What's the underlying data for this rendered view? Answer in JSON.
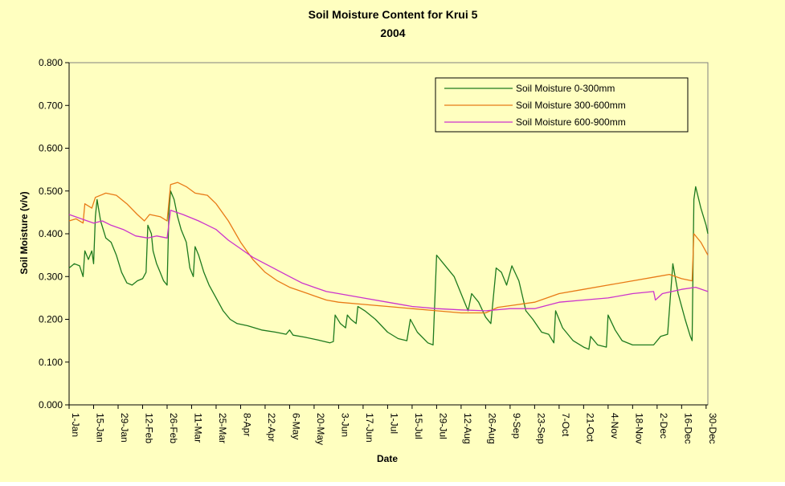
{
  "chart_data": {
    "type": "line",
    "title": "Soil Moisture Content for Krui 5",
    "subtitle": "2004",
    "xlabel": "Date",
    "ylabel": "Soil Moisture (v/v)",
    "ylim": [
      0,
      0.8
    ],
    "yticks": [
      "0.000",
      "0.100",
      "0.200",
      "0.300",
      "0.400",
      "0.500",
      "0.600",
      "0.700",
      "0.800"
    ],
    "xlim": [
      "2004-01-01",
      "2004-12-31"
    ],
    "xticks": [
      {
        "date": "2004-01-01",
        "label": "1-Jan"
      },
      {
        "date": "2004-01-15",
        "label": "15-Jan"
      },
      {
        "date": "2004-01-29",
        "label": "29-Jan"
      },
      {
        "date": "2004-02-12",
        "label": "12-Feb"
      },
      {
        "date": "2004-02-26",
        "label": "26-Feb"
      },
      {
        "date": "2004-03-11",
        "label": "11-Mar"
      },
      {
        "date": "2004-03-25",
        "label": "25-Mar"
      },
      {
        "date": "2004-04-08",
        "label": "8-Apr"
      },
      {
        "date": "2004-04-22",
        "label": "22-Apr"
      },
      {
        "date": "2004-05-06",
        "label": "6-May"
      },
      {
        "date": "2004-05-20",
        "label": "20-May"
      },
      {
        "date": "2004-06-03",
        "label": "3-Jun"
      },
      {
        "date": "2004-06-17",
        "label": "17-Jun"
      },
      {
        "date": "2004-07-01",
        "label": "1-Jul"
      },
      {
        "date": "2004-07-15",
        "label": "15-Jul"
      },
      {
        "date": "2004-07-29",
        "label": "29-Jul"
      },
      {
        "date": "2004-08-12",
        "label": "12-Aug"
      },
      {
        "date": "2004-08-26",
        "label": "26-Aug"
      },
      {
        "date": "2004-09-09",
        "label": "9-Sep"
      },
      {
        "date": "2004-09-23",
        "label": "23-Sep"
      },
      {
        "date": "2004-10-07",
        "label": "7-Oct"
      },
      {
        "date": "2004-10-21",
        "label": "21-Oct"
      },
      {
        "date": "2004-11-04",
        "label": "4-Nov"
      },
      {
        "date": "2004-11-18",
        "label": "18-Nov"
      },
      {
        "date": "2004-12-02",
        "label": "2-Dec"
      },
      {
        "date": "2004-12-16",
        "label": "16-Dec"
      },
      {
        "date": "2004-12-30",
        "label": "30-Dec"
      }
    ],
    "grid": false,
    "legend": "top-right",
    "series": [
      {
        "name": "Soil Moisture 0-300mm",
        "color": "#1e7a1e",
        "points": [
          [
            "2004-01-01",
            0.32
          ],
          [
            "2004-01-04",
            0.33
          ],
          [
            "2004-01-07",
            0.325
          ],
          [
            "2004-01-09",
            0.3
          ],
          [
            "2004-01-10",
            0.36
          ],
          [
            "2004-01-12",
            0.34
          ],
          [
            "2004-01-14",
            0.36
          ],
          [
            "2004-01-15",
            0.33
          ],
          [
            "2004-01-16",
            0.44
          ],
          [
            "2004-01-17",
            0.48
          ],
          [
            "2004-01-19",
            0.43
          ],
          [
            "2004-01-22",
            0.39
          ],
          [
            "2004-01-25",
            0.38
          ],
          [
            "2004-01-28",
            0.35
          ],
          [
            "2004-01-31",
            0.31
          ],
          [
            "2004-02-03",
            0.285
          ],
          [
            "2004-02-06",
            0.28
          ],
          [
            "2004-02-09",
            0.29
          ],
          [
            "2004-02-12",
            0.295
          ],
          [
            "2004-02-14",
            0.31
          ],
          [
            "2004-02-15",
            0.42
          ],
          [
            "2004-02-17",
            0.4
          ],
          [
            "2004-02-18",
            0.36
          ],
          [
            "2004-02-20",
            0.33
          ],
          [
            "2004-02-22",
            0.31
          ],
          [
            "2004-02-24",
            0.29
          ],
          [
            "2004-02-26",
            0.28
          ],
          [
            "2004-02-27",
            0.45
          ],
          [
            "2004-02-28",
            0.5
          ],
          [
            "2004-03-01",
            0.48
          ],
          [
            "2004-03-03",
            0.44
          ],
          [
            "2004-03-05",
            0.41
          ],
          [
            "2004-03-08",
            0.38
          ],
          [
            "2004-03-10",
            0.32
          ],
          [
            "2004-03-12",
            0.3
          ],
          [
            "2004-03-13",
            0.37
          ],
          [
            "2004-03-15",
            0.35
          ],
          [
            "2004-03-18",
            0.31
          ],
          [
            "2004-03-21",
            0.28
          ],
          [
            "2004-03-25",
            0.25
          ],
          [
            "2004-03-29",
            0.22
          ],
          [
            "2004-04-02",
            0.2
          ],
          [
            "2004-04-06",
            0.19
          ],
          [
            "2004-04-12",
            0.185
          ],
          [
            "2004-04-20",
            0.175
          ],
          [
            "2004-04-28",
            0.17
          ],
          [
            "2004-05-04",
            0.165
          ],
          [
            "2004-05-06",
            0.175
          ],
          [
            "2004-05-08",
            0.163
          ],
          [
            "2004-05-15",
            0.158
          ],
          [
            "2004-05-22",
            0.152
          ],
          [
            "2004-05-29",
            0.145
          ],
          [
            "2004-05-31",
            0.148
          ],
          [
            "2004-06-01",
            0.21
          ],
          [
            "2004-06-04",
            0.19
          ],
          [
            "2004-06-07",
            0.18
          ],
          [
            "2004-06-08",
            0.21
          ],
          [
            "2004-06-10",
            0.2
          ],
          [
            "2004-06-13",
            0.19
          ],
          [
            "2004-06-14",
            0.23
          ],
          [
            "2004-06-18",
            0.22
          ],
          [
            "2004-06-24",
            0.2
          ],
          [
            "2004-07-01",
            0.17
          ],
          [
            "2004-07-07",
            0.155
          ],
          [
            "2004-07-12",
            0.15
          ],
          [
            "2004-07-14",
            0.2
          ],
          [
            "2004-07-18",
            0.17
          ],
          [
            "2004-07-24",
            0.145
          ],
          [
            "2004-07-27",
            0.14
          ],
          [
            "2004-07-29",
            0.35
          ],
          [
            "2004-08-02",
            0.33
          ],
          [
            "2004-08-08",
            0.3
          ],
          [
            "2004-08-14",
            0.24
          ],
          [
            "2004-08-16",
            0.22
          ],
          [
            "2004-08-18",
            0.26
          ],
          [
            "2004-08-22",
            0.24
          ],
          [
            "2004-08-26",
            0.205
          ],
          [
            "2004-08-29",
            0.19
          ],
          [
            "2004-09-01",
            0.32
          ],
          [
            "2004-09-04",
            0.31
          ],
          [
            "2004-09-07",
            0.28
          ],
          [
            "2004-09-10",
            0.325
          ],
          [
            "2004-09-14",
            0.29
          ],
          [
            "2004-09-18",
            0.22
          ],
          [
            "2004-09-22",
            0.2
          ],
          [
            "2004-09-27",
            0.17
          ],
          [
            "2004-10-01",
            0.165
          ],
          [
            "2004-10-04",
            0.145
          ],
          [
            "2004-10-05",
            0.22
          ],
          [
            "2004-10-09",
            0.18
          ],
          [
            "2004-10-15",
            0.15
          ],
          [
            "2004-10-21",
            0.135
          ],
          [
            "2004-10-24",
            0.13
          ],
          [
            "2004-10-25",
            0.16
          ],
          [
            "2004-10-29",
            0.14
          ],
          [
            "2004-11-03",
            0.135
          ],
          [
            "2004-11-04",
            0.21
          ],
          [
            "2004-11-08",
            0.175
          ],
          [
            "2004-11-12",
            0.15
          ],
          [
            "2004-11-18",
            0.14
          ],
          [
            "2004-11-24",
            0.14
          ],
          [
            "2004-11-30",
            0.14
          ],
          [
            "2004-12-04",
            0.16
          ],
          [
            "2004-12-08",
            0.165
          ],
          [
            "2004-12-11",
            0.33
          ],
          [
            "2004-12-14",
            0.26
          ],
          [
            "2004-12-18",
            0.2
          ],
          [
            "2004-12-21",
            0.16
          ],
          [
            "2004-12-22",
            0.15
          ],
          [
            "2004-12-23",
            0.48
          ],
          [
            "2004-12-24",
            0.51
          ],
          [
            "2004-12-27",
            0.46
          ],
          [
            "2004-12-30",
            0.42
          ],
          [
            "2004-12-31",
            0.4
          ]
        ]
      },
      {
        "name": "Soil Moisture 300-600mm",
        "color": "#e87a16",
        "points": [
          [
            "2004-01-01",
            0.43
          ],
          [
            "2004-01-05",
            0.435
          ],
          [
            "2004-01-09",
            0.425
          ],
          [
            "2004-01-10",
            0.47
          ],
          [
            "2004-01-14",
            0.46
          ],
          [
            "2004-01-16",
            0.485
          ],
          [
            "2004-01-22",
            0.495
          ],
          [
            "2004-01-28",
            0.49
          ],
          [
            "2004-02-03",
            0.47
          ],
          [
            "2004-02-09",
            0.445
          ],
          [
            "2004-02-13",
            0.43
          ],
          [
            "2004-02-16",
            0.445
          ],
          [
            "2004-02-22",
            0.44
          ],
          [
            "2004-02-26",
            0.43
          ],
          [
            "2004-02-28",
            0.515
          ],
          [
            "2004-03-03",
            0.52
          ],
          [
            "2004-03-08",
            0.51
          ],
          [
            "2004-03-13",
            0.495
          ],
          [
            "2004-03-20",
            0.49
          ],
          [
            "2004-03-25",
            0.47
          ],
          [
            "2004-04-01",
            0.43
          ],
          [
            "2004-04-08",
            0.38
          ],
          [
            "2004-04-15",
            0.34
          ],
          [
            "2004-04-22",
            0.31
          ],
          [
            "2004-04-29",
            0.29
          ],
          [
            "2004-05-06",
            0.275
          ],
          [
            "2004-05-13",
            0.265
          ],
          [
            "2004-05-20",
            0.255
          ],
          [
            "2004-05-27",
            0.245
          ],
          [
            "2004-06-03",
            0.24
          ],
          [
            "2004-06-17",
            0.235
          ],
          [
            "2004-07-01",
            0.23
          ],
          [
            "2004-07-15",
            0.225
          ],
          [
            "2004-07-29",
            0.22
          ],
          [
            "2004-08-12",
            0.215
          ],
          [
            "2004-08-26",
            0.215
          ],
          [
            "2004-09-02",
            0.228
          ],
          [
            "2004-09-09",
            0.232
          ],
          [
            "2004-09-23",
            0.24
          ],
          [
            "2004-10-07",
            0.26
          ],
          [
            "2004-10-21",
            0.27
          ],
          [
            "2004-11-04",
            0.28
          ],
          [
            "2004-11-18",
            0.29
          ],
          [
            "2004-12-02",
            0.3
          ],
          [
            "2004-12-09",
            0.305
          ],
          [
            "2004-12-16",
            0.295
          ],
          [
            "2004-12-22",
            0.29
          ],
          [
            "2004-12-23",
            0.4
          ],
          [
            "2004-12-27",
            0.38
          ],
          [
            "2004-12-31",
            0.35
          ]
        ]
      },
      {
        "name": "Soil Moisture 600-900mm",
        "color": "#cc33cc",
        "points": [
          [
            "2004-01-01",
            0.445
          ],
          [
            "2004-01-08",
            0.435
          ],
          [
            "2004-01-15",
            0.425
          ],
          [
            "2004-01-20",
            0.43
          ],
          [
            "2004-01-25",
            0.42
          ],
          [
            "2004-02-01",
            0.41
          ],
          [
            "2004-02-08",
            0.395
          ],
          [
            "2004-02-15",
            0.39
          ],
          [
            "2004-02-20",
            0.395
          ],
          [
            "2004-02-26",
            0.39
          ],
          [
            "2004-02-28",
            0.455
          ],
          [
            "2004-03-06",
            0.445
          ],
          [
            "2004-03-15",
            0.43
          ],
          [
            "2004-03-25",
            0.41
          ],
          [
            "2004-04-01",
            0.385
          ],
          [
            "2004-04-08",
            0.365
          ],
          [
            "2004-04-15",
            0.345
          ],
          [
            "2004-04-22",
            0.33
          ],
          [
            "2004-04-29",
            0.315
          ],
          [
            "2004-05-06",
            0.3
          ],
          [
            "2004-05-13",
            0.285
          ],
          [
            "2004-05-20",
            0.275
          ],
          [
            "2004-05-27",
            0.265
          ],
          [
            "2004-06-03",
            0.26
          ],
          [
            "2004-06-17",
            0.25
          ],
          [
            "2004-07-01",
            0.24
          ],
          [
            "2004-07-15",
            0.23
          ],
          [
            "2004-07-29",
            0.225
          ],
          [
            "2004-08-12",
            0.222
          ],
          [
            "2004-08-26",
            0.22
          ],
          [
            "2004-09-09",
            0.225
          ],
          [
            "2004-09-23",
            0.225
          ],
          [
            "2004-10-07",
            0.24
          ],
          [
            "2004-10-21",
            0.245
          ],
          [
            "2004-11-04",
            0.25
          ],
          [
            "2004-11-18",
            0.26
          ],
          [
            "2004-11-30",
            0.265
          ],
          [
            "2004-12-01",
            0.245
          ],
          [
            "2004-12-05",
            0.26
          ],
          [
            "2004-12-16",
            0.27
          ],
          [
            "2004-12-24",
            0.275
          ],
          [
            "2004-12-31",
            0.265
          ]
        ]
      }
    ]
  }
}
